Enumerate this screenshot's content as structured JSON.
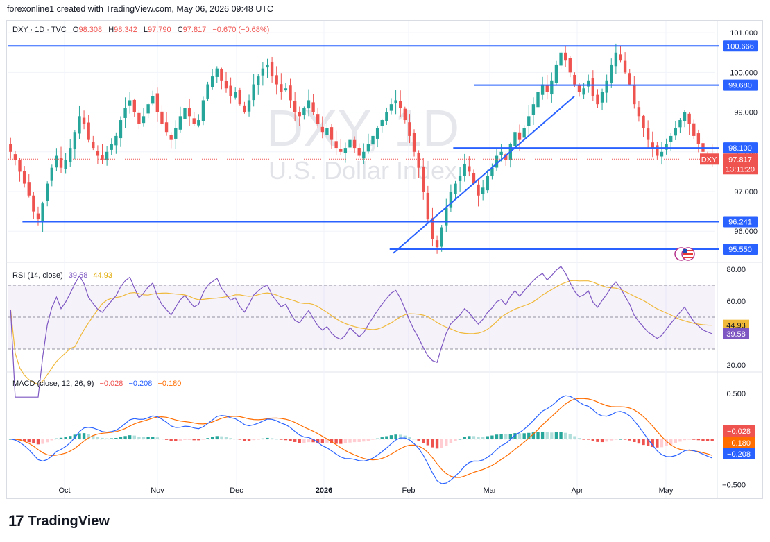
{
  "header": {
    "text": "forexonline1 created with TradingView.com, May 06, 2026 09:48 UTC"
  },
  "main_legend": {
    "symbol": "DXY · 1D · TVC",
    "o_label": "O",
    "o": "98.308",
    "h_label": "H",
    "h": "98.342",
    "l_label": "L",
    "l": "97.790",
    "c_label": "C",
    "c": "97.817",
    "change": "−0.670 (−0.68%)"
  },
  "watermark": {
    "ticker": "DXY, 1D",
    "name": "U.S. Dollar Index"
  },
  "rsi_legend": {
    "label": "RSI (14, close)",
    "rsi": "39.58",
    "ma": "44.93"
  },
  "macd_legend": {
    "label": "MACD (close, 12, 26, 9)",
    "hist": "−0.028",
    "macd": "−0.208",
    "signal": "−0.180"
  },
  "footer": {
    "brand": "TradingView"
  },
  "colors": {
    "up": "#26a69a",
    "down": "#ef5350",
    "level": "#2962ff",
    "rsi": "#7e57c2",
    "rsi_ma": "#f0b93a",
    "macd": "#2962ff",
    "signal": "#ff6d00"
  },
  "chart_data": [
    {
      "type": "candlestick",
      "title": "DXY · 1D · TVC",
      "yticks": [
        101.0,
        100.0,
        99.0,
        98.0,
        97.0,
        96.0
      ],
      "ylim": [
        95.27,
        101.3
      ],
      "xticks": [
        "Oct",
        "Nov",
        "Dec",
        "2026",
        "Feb",
        "Mar",
        "Apr",
        "May"
      ],
      "price_labels": [
        {
          "text": "100.666",
          "value": 100.666,
          "style": "blue"
        },
        {
          "text": "99.680",
          "value": 99.68,
          "style": "blue"
        },
        {
          "text": "98.100",
          "value": 98.1,
          "style": "blue"
        },
        {
          "text": "DXY",
          "value": 97.817,
          "style": "red"
        },
        {
          "text": "97.817",
          "value": 97.817,
          "style": "red"
        },
        {
          "text": "13:11:20",
          "value": 97.817,
          "style": "red"
        },
        {
          "text": "96.241",
          "value": 96.241,
          "style": "blue"
        },
        {
          "text": "95.550",
          "value": 95.55,
          "style": "blue"
        }
      ],
      "levels": [
        {
          "value": 100.666,
          "x_start": 0
        },
        {
          "value": 99.68,
          "x_start": 0.66
        },
        {
          "value": 98.1,
          "x_start": 0.63
        },
        {
          "value": 96.241,
          "x_start": 0.02
        },
        {
          "value": 95.55,
          "x_start": 0.54
        }
      ],
      "trendline": [
        {
          "value": 95.45
        },
        {
          "value": 99.4
        }
      ],
      "last_close": 97.817,
      "closes": [
        98.0,
        97.8,
        97.5,
        97.2,
        96.9,
        96.5,
        96.3,
        96.7,
        97.2,
        97.6,
        97.9,
        97.6,
        97.8,
        98.1,
        98.5,
        98.9,
        98.7,
        98.3,
        98.1,
        97.9,
        97.8,
        98.0,
        98.2,
        98.4,
        98.8,
        99.1,
        99.3,
        99.0,
        98.7,
        98.9,
        99.2,
        99.4,
        99.0,
        98.7,
        98.5,
        98.3,
        98.6,
        98.9,
        99.1,
        98.9,
        98.7,
        98.8,
        99.3,
        99.7,
        99.9,
        100.1,
        99.8,
        99.6,
        99.4,
        99.5,
        99.2,
        99.0,
        99.3,
        99.7,
        99.9,
        100.1,
        100.2,
        99.9,
        99.7,
        99.5,
        99.6,
        99.3,
        99.0,
        98.9,
        99.1,
        99.3,
        99.0,
        98.7,
        98.5,
        98.6,
        98.3,
        98.1,
        98.0,
        98.1,
        98.3,
        98.1,
        97.9,
        98.0,
        98.2,
        98.4,
        98.6,
        98.8,
        99.0,
        99.2,
        99.3,
        99.1,
        98.8,
        98.4,
        98.0,
        97.6,
        97.0,
        96.3,
        95.8,
        95.6,
        96.1,
        96.6,
        97.0,
        97.2,
        97.4,
        97.7,
        97.5,
        97.2,
        96.9,
        97.1,
        97.4,
        97.6,
        97.9,
        98.0,
        97.8,
        98.2,
        98.5,
        98.3,
        98.6,
        98.9,
        99.2,
        99.5,
        99.7,
        99.5,
        99.8,
        100.2,
        100.5,
        100.3,
        100.0,
        99.7,
        99.5,
        99.6,
        99.8,
        99.4,
        99.2,
        99.5,
        99.8,
        100.2,
        100.5,
        100.3,
        100.0,
        99.7,
        99.2,
        98.9,
        98.6,
        98.3,
        98.1,
        97.9,
        98.0,
        98.2,
        98.4,
        98.6,
        98.8,
        99.0,
        98.7,
        98.4,
        98.2,
        98.0,
        97.9,
        97.817
      ]
    },
    {
      "type": "line",
      "title": "RSI (14, close)",
      "yticks": [
        80,
        60,
        20
      ],
      "ylim": [
        17,
        83
      ],
      "bands": [
        70,
        50,
        30
      ],
      "series": [
        {
          "name": "RSI",
          "last": 39.58
        },
        {
          "name": "MA",
          "last": 44.93
        }
      ],
      "price_labels": [
        {
          "text": "44.93",
          "value": 44.93,
          "style": "yellow"
        },
        {
          "text": "39.58",
          "value": 39.58,
          "style": "purple"
        }
      ]
    },
    {
      "type": "bar+line",
      "title": "MACD (close, 12, 26, 9)",
      "yticks": [
        0.5,
        -0.5
      ],
      "ylim": [
        -0.65,
        0.72
      ],
      "series": [
        {
          "name": "Histogram",
          "last": -0.028
        },
        {
          "name": "MACD",
          "last": -0.208
        },
        {
          "name": "Signal",
          "last": -0.18
        }
      ],
      "price_labels": [
        {
          "text": "−0.028",
          "value": -0.028,
          "style": "red"
        },
        {
          "text": "−0.180",
          "value": -0.18,
          "style": "orange"
        },
        {
          "text": "−0.208",
          "value": -0.208,
          "style": "blue"
        }
      ]
    }
  ]
}
